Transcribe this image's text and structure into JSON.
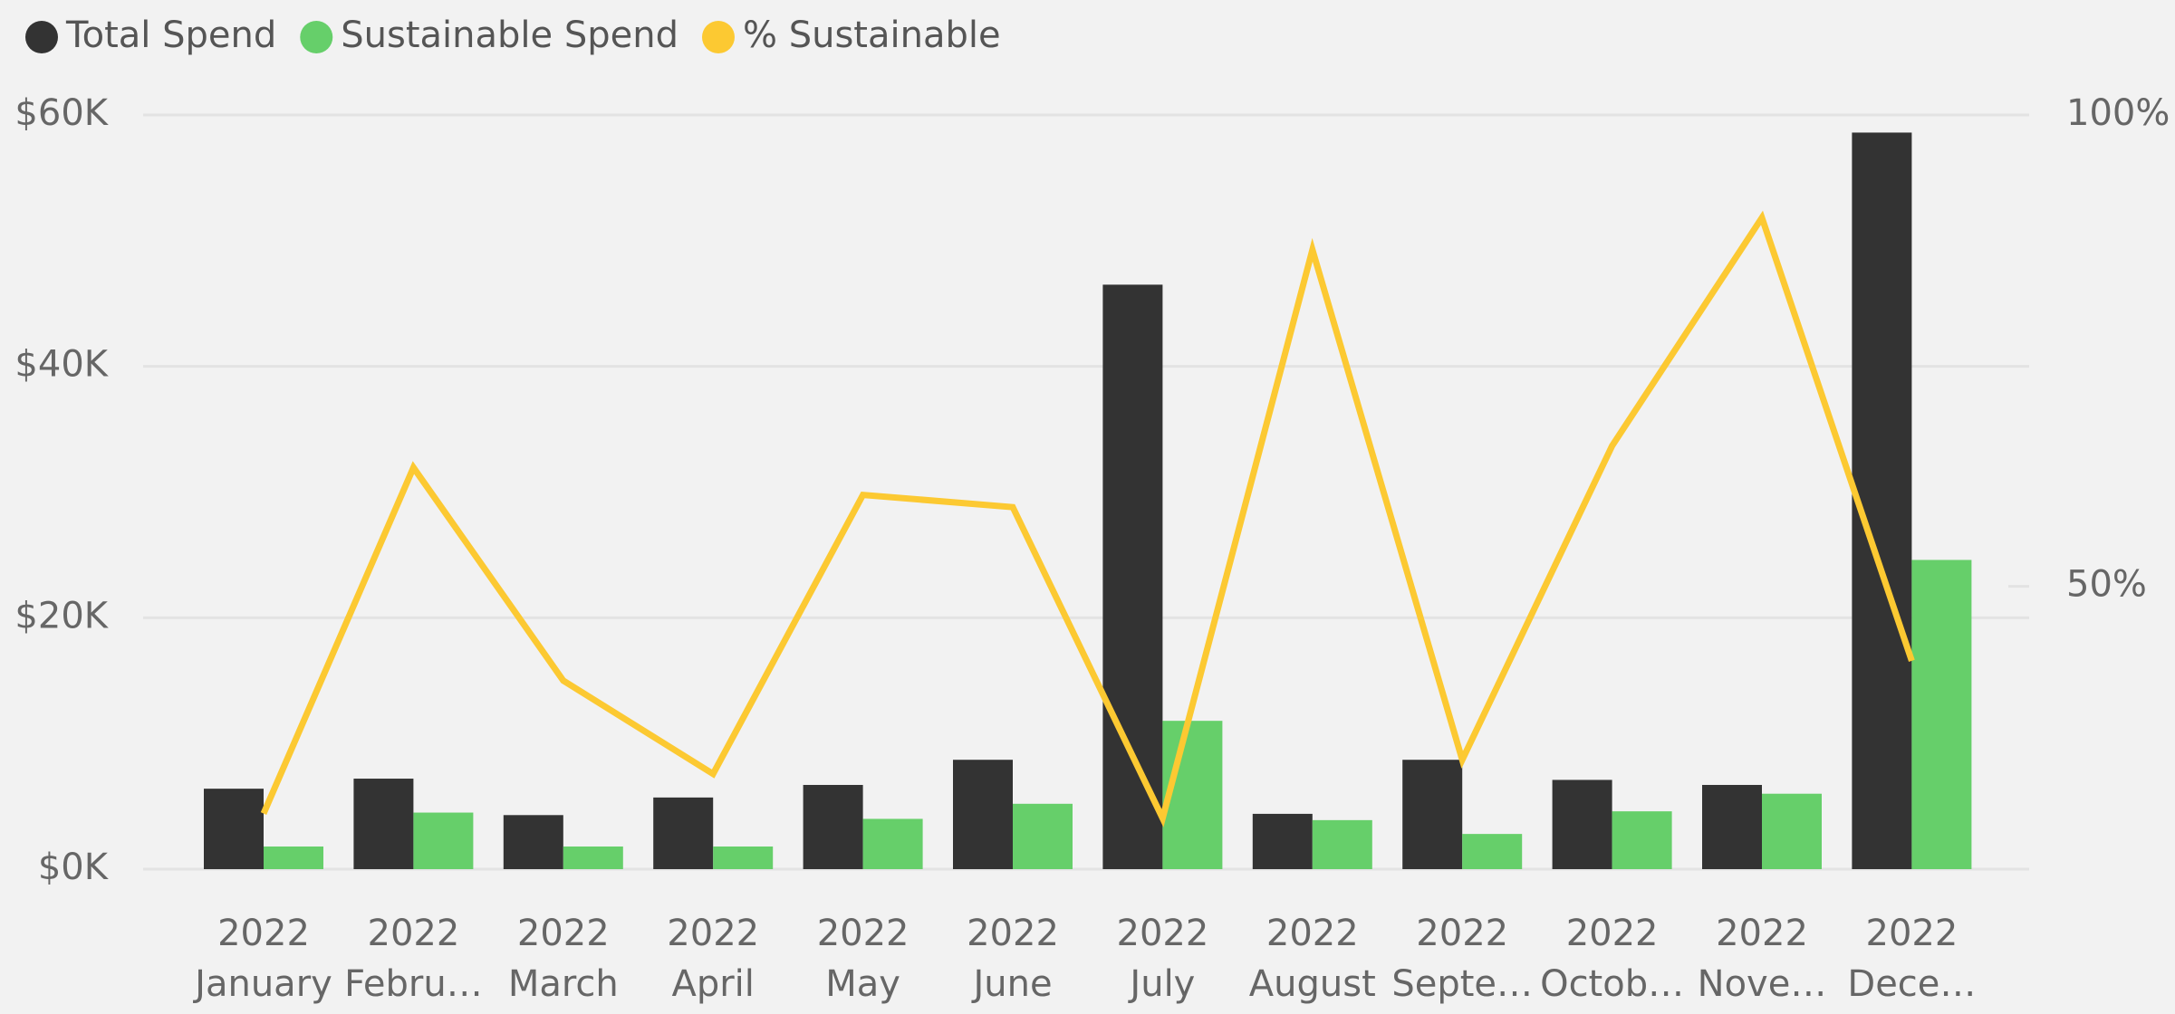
{
  "chart_data": {
    "type": "bar-line",
    "categories": [
      [
        "2022",
        "January"
      ],
      [
        "2022",
        "Febru…"
      ],
      [
        "2022",
        "March"
      ],
      [
        "2022",
        "April"
      ],
      [
        "2022",
        "May"
      ],
      [
        "2022",
        "June"
      ],
      [
        "2022",
        "July"
      ],
      [
        "2022",
        "August"
      ],
      [
        "2022",
        "Septe…"
      ],
      [
        "2022",
        "Octob…"
      ],
      [
        "2022",
        "Nove…"
      ],
      [
        "2022",
        "Dece…"
      ]
    ],
    "series": [
      {
        "name": "Total Spend",
        "color": "#333333",
        "type": "bar",
        "values": [
          6400,
          7200,
          4300,
          5700,
          6700,
          8700,
          46500,
          4400,
          8700,
          7100,
          6700,
          58600
        ]
      },
      {
        "name": "Sustainable Spend",
        "color": "#66cf6a",
        "type": "bar",
        "values": [
          1800,
          4500,
          1800,
          1800,
          4000,
          5200,
          11800,
          3900,
          2800,
          4600,
          6000,
          24600
        ]
      },
      {
        "name": "% Sustainable",
        "color": "#fcc932",
        "type": "line",
        "axis": "y2",
        "values": [
          25.9,
          62.6,
          40.0,
          30.1,
          59.7,
          58.4,
          25.4,
          85.7,
          31.6,
          64.9,
          89.1,
          42.1
        ]
      }
    ],
    "ylim": [
      0,
      60000
    ],
    "yticks": [
      {
        "value": 0,
        "label": "$0K"
      },
      {
        "value": 20000,
        "label": "$20K"
      },
      {
        "value": 40000,
        "label": "$40K"
      },
      {
        "value": 60000,
        "label": "$60K"
      }
    ],
    "y2lim": [
      20,
      100
    ],
    "y2ticks": [
      {
        "value": 50,
        "label": "50%"
      },
      {
        "value": 100,
        "label": "100%"
      }
    ],
    "grid": true,
    "legend": "top-left"
  }
}
